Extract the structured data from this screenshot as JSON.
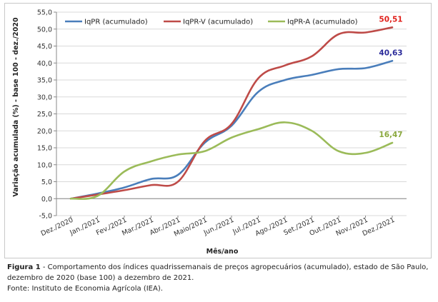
{
  "chart_data": {
    "type": "line",
    "xlabel": "Mês/ano",
    "ylabel": "Variação acumulada (%) - base 100 - dez./2020",
    "ylim": [
      -5,
      55
    ],
    "yticks": [
      "-5,0",
      "0,0",
      "5,0",
      "10,0",
      "15,0",
      "20,0",
      "25,0",
      "30,0",
      "35,0",
      "40,0",
      "45,0",
      "50,0",
      "55,0"
    ],
    "grid": "horizontal",
    "legend": "top-left",
    "categories": [
      "Dez./2020",
      "Jan./2021",
      "Fev./2021",
      "Mar./2021",
      "Abr./2021",
      "Maio/2021",
      "Jun./2021",
      "Jul./2021",
      "Ago./2021",
      "Set./2021",
      "Out./2021",
      "Nov./2021",
      "Dez./2021"
    ],
    "series": [
      {
        "name": "IqPR (acumulado)",
        "color": "#4a7ebb",
        "values": [
          0.0,
          1.5,
          3.3,
          5.8,
          7.0,
          16.5,
          21.5,
          31.5,
          35.0,
          36.5,
          38.2,
          38.5,
          40.63
        ],
        "end_label": "40,63"
      },
      {
        "name": "IqPR-V (acumulado)",
        "color": "#be4b48",
        "values": [
          0.0,
          1.2,
          2.5,
          4.0,
          5.0,
          17.0,
          22.0,
          35.5,
          39.3,
          42.0,
          48.5,
          49.0,
          50.51
        ],
        "end_label": "50,51"
      },
      {
        "name": "IqPR-A (acumulado)",
        "color": "#9bbb59",
        "values": [
          0.0,
          0.8,
          8.0,
          11.0,
          13.0,
          14.0,
          18.0,
          20.5,
          22.5,
          20.0,
          14.0,
          13.5,
          16.47
        ],
        "end_label": "16,47"
      }
    ]
  },
  "caption": {
    "figure_label": "Figura 1",
    "text": " - Comportamento dos índices quadrissemanais de preços agropecuários (acumulado), estado de São Paulo, dezembro de 2020 (base 100) a dezembro de 2021.",
    "source": "Fonte: Instituto de Economia Agrícola (IEA)."
  }
}
